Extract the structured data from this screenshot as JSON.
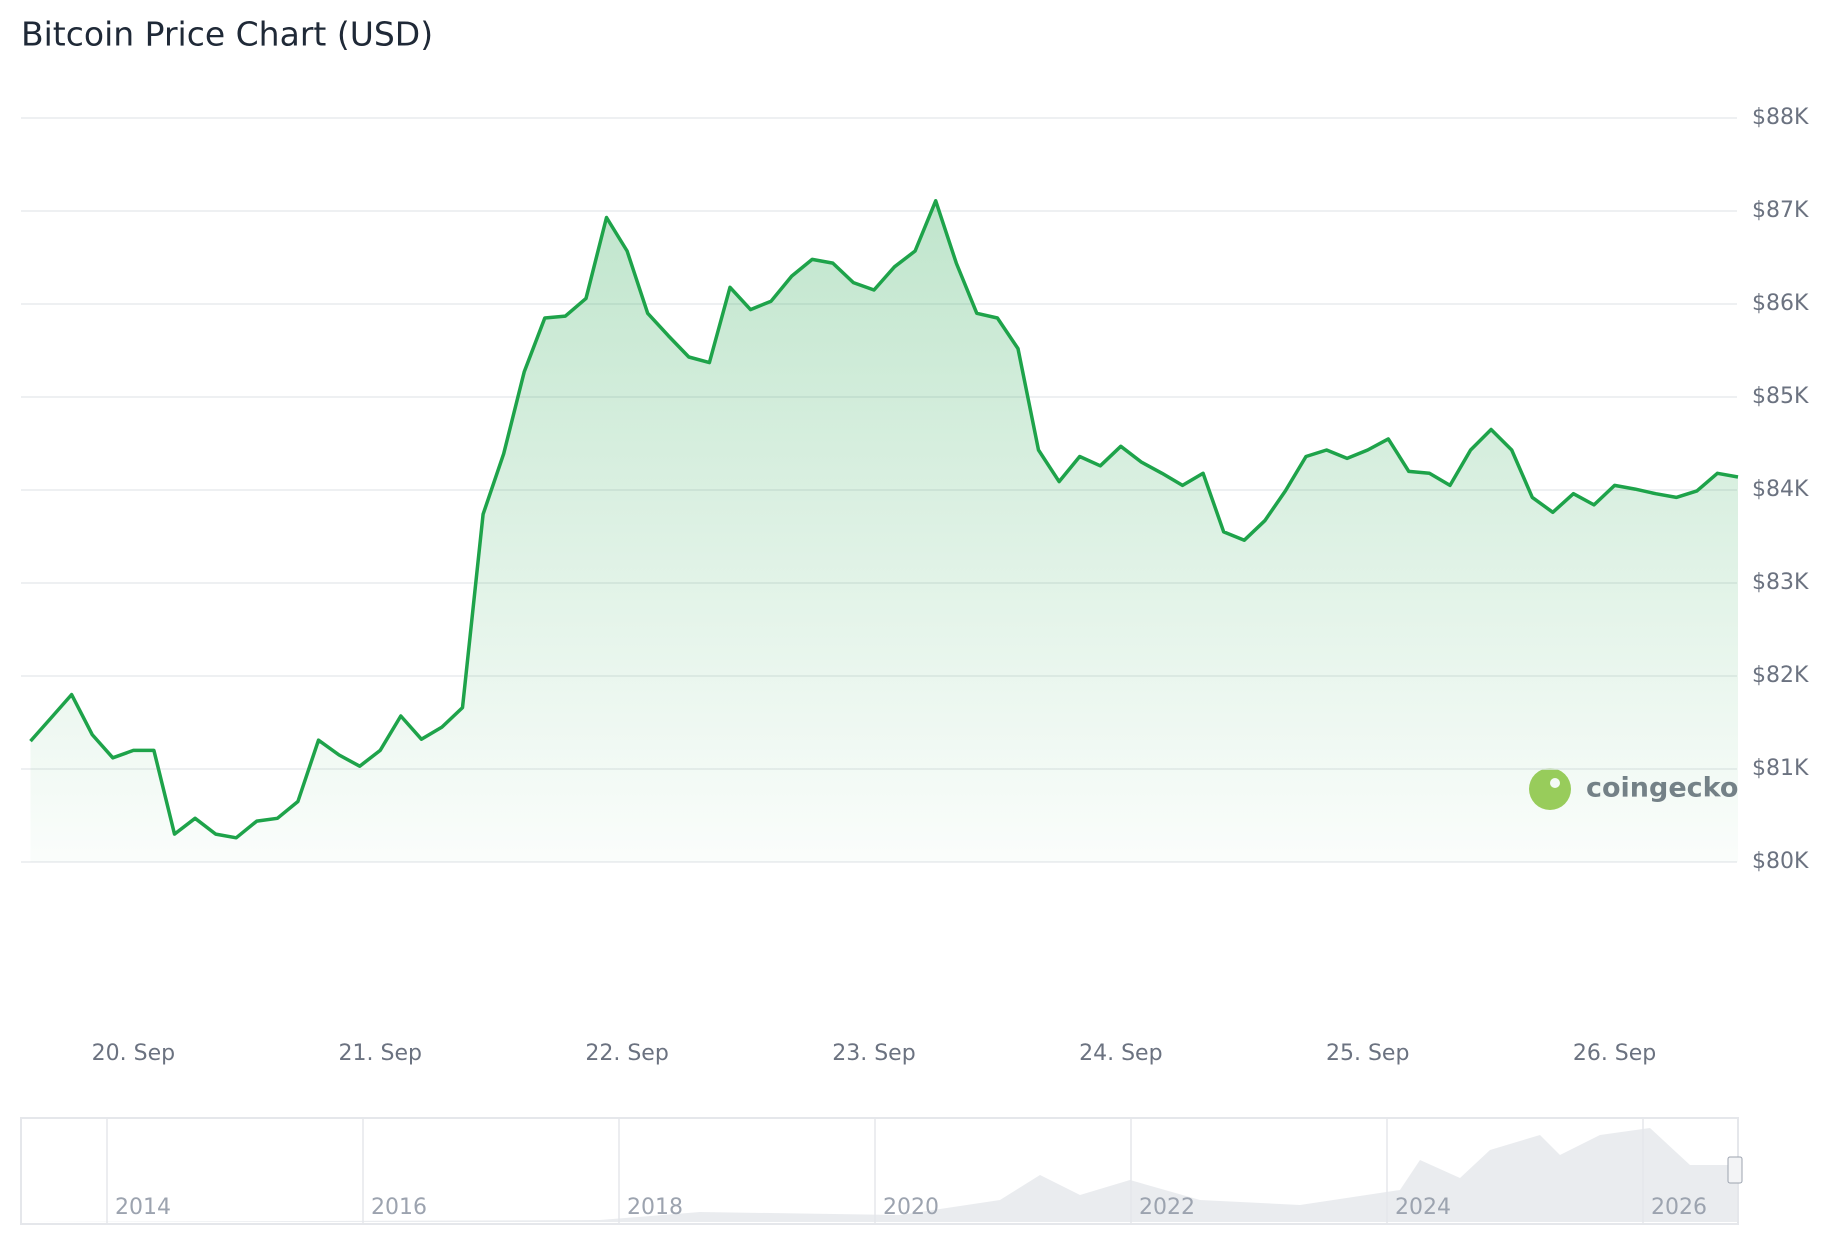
{
  "chart_data": {
    "type": "line",
    "title": "Bitcoin Price Chart (USD)",
    "categories": [
      null,
      null,
      null,
      null,
      null,
      "20. Sep",
      null,
      null,
      null,
      null,
      null,
      null,
      null,
      null,
      null,
      null,
      null,
      "21. Sep",
      null,
      null,
      null,
      null,
      null,
      null,
      null,
      null,
      null,
      null,
      null,
      "22. Sep",
      null,
      null,
      null,
      null,
      null,
      null,
      null,
      null,
      null,
      null,
      null,
      "23. Sep",
      null,
      null,
      null,
      null,
      null,
      null,
      null,
      null,
      null,
      null,
      null,
      "24. Sep",
      null,
      null,
      null,
      null,
      null,
      null,
      null,
      null,
      null,
      null,
      null,
      "25. Sep",
      null,
      null,
      null,
      null,
      null,
      null,
      null,
      null,
      null,
      null,
      null,
      "26. Sep",
      null,
      null,
      null,
      null,
      null,
      null
    ],
    "values": [
      81300,
      81550,
      81800,
      81370,
      81120,
      81200,
      81200,
      80300,
      80470,
      80300,
      80260,
      80440,
      80470,
      80650,
      81310,
      81150,
      81030,
      81200,
      81570,
      81320,
      81450,
      81660,
      83740,
      84390,
      85270,
      85850,
      85870,
      86060,
      86930,
      86570,
      85900,
      85660,
      85430,
      85370,
      86180,
      85940,
      86030,
      86300,
      86480,
      86440,
      86230,
      86150,
      86400,
      86570,
      87110,
      86440,
      85900,
      85850,
      85520,
      84430,
      84090,
      84360,
      84260,
      84470,
      84300,
      84180,
      84050,
      84180,
      83550,
      83460,
      83670,
      83990,
      84360,
      84430,
      84340,
      84430,
      84550,
      84200,
      84180,
      84050,
      84430,
      84650,
      84430,
      83920,
      83760,
      83960,
      83840,
      84050,
      84010,
      83960,
      83920,
      83990,
      84180,
      84140
    ],
    "color": "#1ea34a",
    "ylim": [
      80000,
      88000
    ],
    "yticks": [
      {
        "value": 80000,
        "label": "$80K"
      },
      {
        "value": 81000,
        "label": "$81K"
      },
      {
        "value": 82000,
        "label": "$82K"
      },
      {
        "value": 83000,
        "label": "$83K"
      },
      {
        "value": 84000,
        "label": "$84K"
      },
      {
        "value": 85000,
        "label": "$85K"
      },
      {
        "value": 86000,
        "label": "$86K"
      },
      {
        "value": 87000,
        "label": "$87K"
      },
      {
        "value": 88000,
        "label": "$88K"
      }
    ],
    "grid": true
  },
  "watermark": "coingecko",
  "navigator": {
    "labels": [
      "2014",
      "2016",
      "2018",
      "2020",
      "2022",
      "2024",
      "2026"
    ]
  }
}
